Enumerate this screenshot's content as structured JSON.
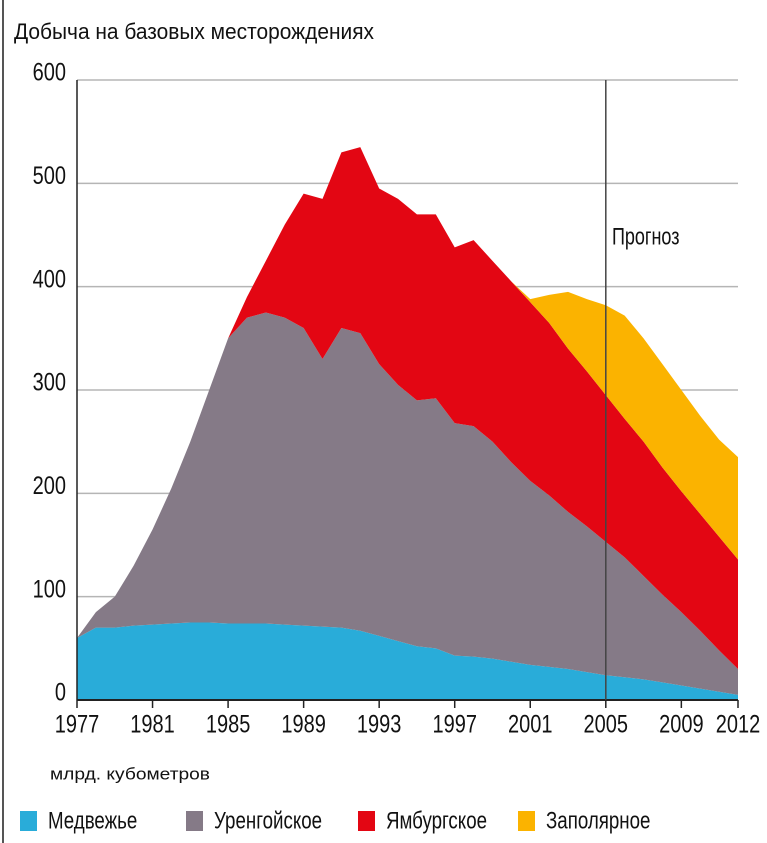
{
  "chart_data": {
    "type": "stacked_area",
    "title": "Добыча на базовых месторождениях",
    "y_label": "млрд. кубометров",
    "annotation": "Прогноз",
    "forecast_start": 2005,
    "x": [
      1977,
      1978,
      1979,
      1980,
      1981,
      1982,
      1983,
      1984,
      1985,
      1986,
      1987,
      1988,
      1989,
      1990,
      1991,
      1992,
      1993,
      1994,
      1995,
      1996,
      1997,
      1998,
      1999,
      2000,
      2001,
      2002,
      2003,
      2004,
      2005,
      2006,
      2007,
      2008,
      2009,
      2010,
      2011,
      2012
    ],
    "series": [
      {
        "name": "Медвежье",
        "color": "#29acd9",
        "values": [
          60,
          70,
          70,
          72,
          73,
          74,
          75,
          75,
          74,
          74,
          74,
          73,
          72,
          71,
          70,
          67,
          62,
          57,
          52,
          50,
          43,
          42,
          40,
          37,
          34,
          32,
          30,
          27,
          24,
          22,
          20,
          17,
          14,
          11,
          8,
          5
        ]
      },
      {
        "name": "Уренгойское",
        "color": "#857a87",
        "values": [
          0,
          15,
          30,
          58,
          92,
          131,
          175,
          225,
          276,
          296,
          301,
          297,
          288,
          259,
          290,
          288,
          263,
          248,
          238,
          242,
          225,
          223,
          210,
          193,
          178,
          166,
          152,
          141,
          129,
          116,
          100,
          85,
          71,
          56,
          40,
          25
        ]
      },
      {
        "name": "Ямбургское",
        "color": "#e30613",
        "values": [
          0,
          0,
          0,
          0,
          0,
          0,
          0,
          0,
          0,
          20,
          50,
          90,
          130,
          155,
          170,
          180,
          170,
          180,
          180,
          178,
          170,
          180,
          175,
          175,
          173,
          167,
          158,
          150,
          142,
          134,
          130,
          123,
          117,
          113,
          110,
          106
        ]
      },
      {
        "name": "Заполярное",
        "color": "#fbb300",
        "values": [
          0,
          0,
          0,
          0,
          0,
          0,
          0,
          0,
          0,
          0,
          0,
          0,
          0,
          0,
          0,
          0,
          0,
          0,
          0,
          0,
          0,
          0,
          0,
          0,
          3,
          27,
          55,
          70,
          87,
          100,
          100,
          100,
          98,
          95,
          94,
          99
        ]
      }
    ],
    "xlim": [
      1977,
      2012
    ],
    "xticks": [
      1977,
      1981,
      1985,
      1989,
      1993,
      1997,
      2001,
      2005,
      2009,
      2012
    ],
    "ylim": [
      0,
      600
    ],
    "yticks": [
      0,
      100,
      200,
      300,
      400,
      500,
      600
    ],
    "grid": true
  }
}
